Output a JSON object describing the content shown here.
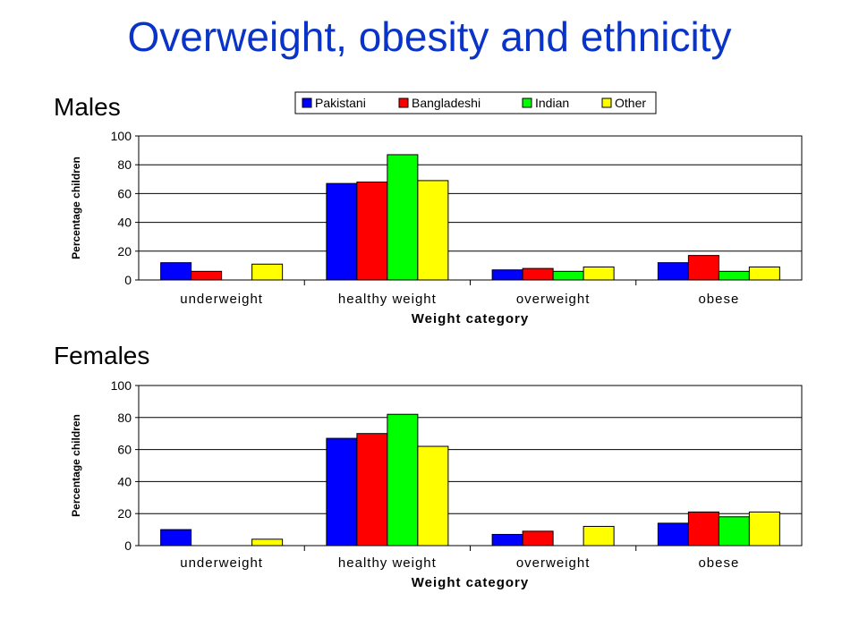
{
  "page": {
    "title": "Overweight, obesity and ethnicity",
    "males_label": "Males",
    "females_label": "Females"
  },
  "chart_data": [
    {
      "type": "bar",
      "xlabel": "Weight category",
      "ylabel": "Percentage children",
      "ylim": [
        0,
        100
      ],
      "yticks": [
        0,
        20,
        40,
        60,
        80,
        100
      ],
      "grid": true,
      "legend": "top",
      "categories": [
        "underweight",
        "healthy weight",
        "overweight",
        "obese"
      ],
      "series": [
        {
          "name": "Pakistani",
          "color": "#0000ff",
          "values": [
            12,
            67,
            7,
            12
          ]
        },
        {
          "name": "Bangladeshi",
          "color": "#ff0000",
          "values": [
            6,
            68,
            8,
            17
          ]
        },
        {
          "name": "Indian",
          "color": "#00ff00",
          "values": [
            0,
            87,
            6,
            6
          ]
        },
        {
          "name": "Other",
          "color": "#ffff00",
          "values": [
            11,
            69,
            9,
            9
          ]
        }
      ]
    },
    {
      "type": "bar",
      "xlabel": "Weight category",
      "ylabel": "Percentage children",
      "ylim": [
        0,
        100
      ],
      "yticks": [
        0,
        20,
        40,
        60,
        80,
        100
      ],
      "grid": true,
      "categories": [
        "underweight",
        "healthy weight",
        "overweight",
        "obese"
      ],
      "series": [
        {
          "name": "Pakistani",
          "color": "#0000ff",
          "values": [
            10,
            67,
            7,
            14
          ]
        },
        {
          "name": "Bangladeshi",
          "color": "#ff0000",
          "values": [
            0,
            70,
            9,
            21
          ]
        },
        {
          "name": "Indian",
          "color": "#00ff00",
          "values": [
            0,
            82,
            0,
            18
          ]
        },
        {
          "name": "Other",
          "color": "#ffff00",
          "values": [
            4,
            62,
            12,
            21
          ]
        }
      ]
    }
  ]
}
